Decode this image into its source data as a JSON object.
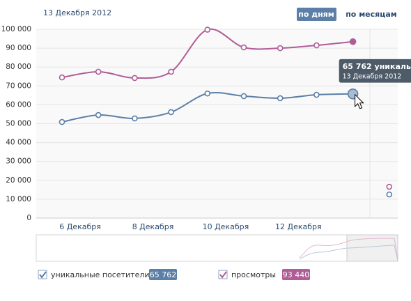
{
  "chart_data": {
    "type": "line",
    "date": "13 Декабря 2012",
    "buttons": [
      "по дням",
      "по месяцам"
    ],
    "categories": [
      "6 Декабря",
      null,
      "8 Декабря",
      null,
      "10 Декабря",
      null,
      "12 Декабря",
      null,
      null,
      null
    ],
    "series": [
      {
        "name": "уникальные посетители",
        "color": "#5b7fa6",
        "values": [
          50900,
          54600,
          52800,
          56100,
          66000,
          64600,
          63500,
          65300,
          65762,
          12500
        ],
        "value_labels": [
          null,
          null,
          null,
          null,
          null,
          null,
          null,
          null,
          "65 762",
          null
        ]
      },
      {
        "name": "просмотры",
        "color": "#b05c97",
        "values": [
          74500,
          77500,
          74200,
          77500,
          99800,
          90400,
          90000,
          91500,
          93440,
          16600
        ],
        "value_labels": [
          null,
          null,
          null,
          null,
          null,
          null,
          null,
          null,
          "93 440",
          null
        ]
      }
    ],
    "tooltip": {
      "title": "65 762 уникальны",
      "subtitle": "13 Декабря 2012"
    },
    "ylim": [
      0,
      100000
    ],
    "yticks": [
      0,
      {
        "value": 10000,
        "label": "10 000"
      },
      {
        "value": 20000,
        "label": "20 000"
      },
      {
        "value": 30000,
        "label": "30 000"
      },
      {
        "value": 40000,
        "label": "40 000"
      },
      {
        "value": 50000,
        "label": "50 000"
      },
      {
        "value": 60000,
        "label": "60 000"
      },
      {
        "value": 70000,
        "label": "70 000"
      },
      {
        "value": 80000,
        "label": "80 000"
      },
      {
        "value": 90000,
        "label": "90 000"
      },
      {
        "value": 100000,
        "label": "100 000"
      }
    ],
    "grid": true
  }
}
